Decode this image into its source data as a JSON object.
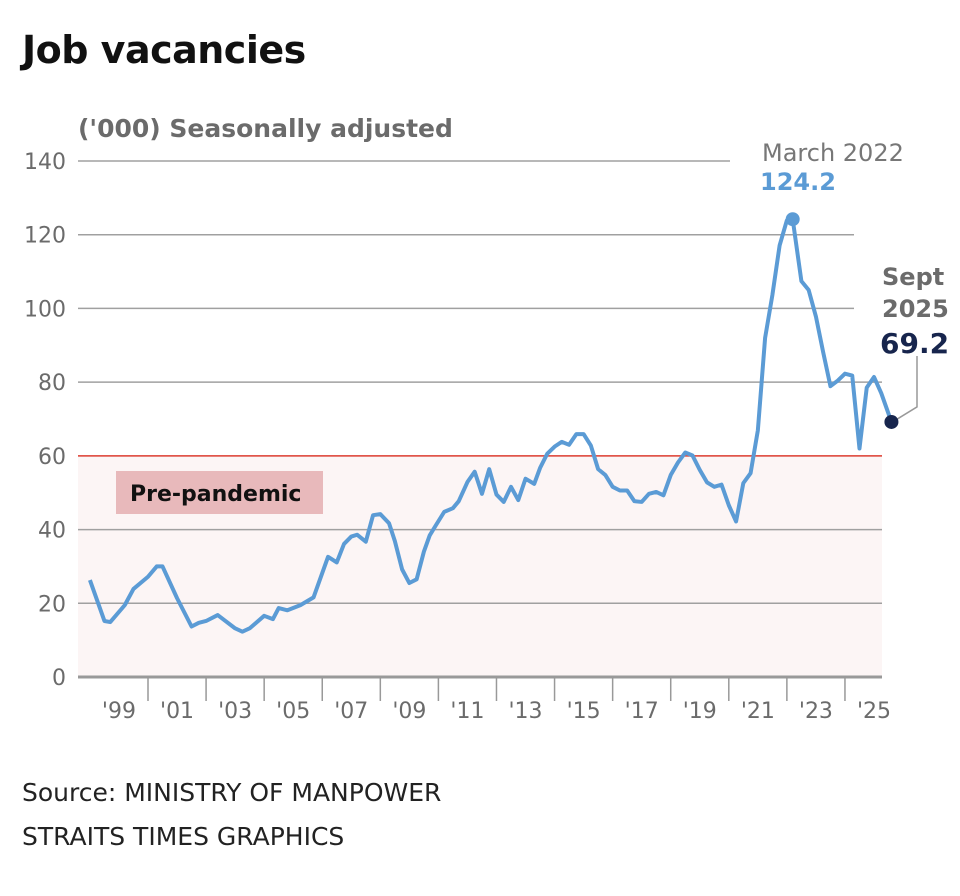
{
  "chart_data": {
    "type": "line",
    "title": "Job vacancies",
    "ylabel": "('000) Seasonally adjusted",
    "ylim": [
      0,
      140
    ],
    "yticks": [
      0,
      20,
      40,
      60,
      80,
      100,
      120,
      140
    ],
    "xlim": [
      1997.6,
      2025.8
    ],
    "xtick_labels": [
      "'99",
      "'01",
      "'03",
      "'05",
      "'07",
      "'09",
      "'11",
      "'13",
      "'15",
      "'17",
      "'19",
      "'21",
      "'23",
      "'25"
    ],
    "xtick_label_years": [
      1999,
      2001,
      2003,
      2005,
      2007,
      2009,
      2011,
      2013,
      2015,
      2017,
      2019,
      2021,
      2023,
      2025
    ],
    "grid": true,
    "line_color": "#5b9bd5",
    "reference": {
      "label": "Pre-pandemic",
      "value": 60,
      "line_color": "#e8473a",
      "band_color": "#fcf5f5",
      "label_bg": "#e8b9bb"
    },
    "series": [
      {
        "x": [
          1998.0,
          1998.5,
          1998.7,
          1999.2,
          1999.5,
          2000.0,
          2000.3,
          2000.5,
          2001.0,
          2001.5,
          2001.75,
          2002.0,
          2002.4,
          2003.0,
          2003.25,
          2003.5,
          2004.0,
          2004.3,
          2004.5,
          2004.8,
          2005.25,
          2005.7,
          2006.2,
          2006.5,
          2006.75,
          2007.0,
          2007.2,
          2007.5,
          2007.75,
          2008.0,
          2008.3,
          2008.5,
          2008.75,
          2009.0,
          2009.25,
          2009.5,
          2009.7,
          2009.9,
          2010.2,
          2010.5,
          2010.7,
          2011.0,
          2011.25,
          2011.5,
          2011.75,
          2012.0,
          2012.25,
          2012.5,
          2012.75,
          2013.0,
          2013.3,
          2013.5,
          2013.75,
          2014.0,
          2014.25,
          2014.5,
          2014.75,
          2015.0,
          2015.25,
          2015.5,
          2015.75,
          2016.0,
          2016.25,
          2016.5,
          2016.75,
          2017.0,
          2017.25,
          2017.5,
          2017.75,
          2018.0,
          2018.25,
          2018.5,
          2018.75,
          2019.0,
          2019.25,
          2019.5,
          2019.75,
          2020.0,
          2020.25,
          2020.5,
          2020.75,
          2021.0,
          2021.25,
          2021.5,
          2021.75,
          2022.0,
          2022.2,
          2022.5,
          2022.75,
          2023.0,
          2023.25,
          2023.5,
          2023.75,
          2024.0,
          2024.25,
          2024.5,
          2024.75,
          2025.0,
          2025.25,
          2025.6
        ],
        "y": [
          26.3,
          15.2,
          14.9,
          19.5,
          23.9,
          27.2,
          30.0,
          30.0,
          21.4,
          13.7,
          14.7,
          15.2,
          16.8,
          13.2,
          12.3,
          13.2,
          16.6,
          15.7,
          18.7,
          18.1,
          19.5,
          21.6,
          32.6,
          31.1,
          36.1,
          38.1,
          38.6,
          36.7,
          43.9,
          44.2,
          41.7,
          36.9,
          29.2,
          25.5,
          26.5,
          34.0,
          38.4,
          41.0,
          44.8,
          45.8,
          47.7,
          52.9,
          55.7,
          49.7,
          56.4,
          49.5,
          47.5,
          51.6,
          48.0,
          53.8,
          52.4,
          56.7,
          60.6,
          62.5,
          63.8,
          63.0,
          65.9,
          65.9,
          62.8,
          56.4,
          54.8,
          51.6,
          50.6,
          50.6,
          47.7,
          47.5,
          49.7,
          50.2,
          49.3,
          54.8,
          58.2,
          60.9,
          60.1,
          56.2,
          52.8,
          51.6,
          52.2,
          46.6,
          42.2,
          52.6,
          55.3,
          66.9,
          92.0,
          103.6,
          117.1,
          123.9,
          124.2,
          107.4,
          105.0,
          97.8,
          88.1,
          78.9,
          80.4,
          82.3,
          81.8,
          62.0,
          78.5,
          81.4,
          77.0,
          69.2
        ]
      }
    ],
    "annotations": [
      {
        "label": "March 2022",
        "value_label": "124.2",
        "x": 2022.2,
        "y": 124.2,
        "color": "#5b9bd5"
      },
      {
        "label_line1": "Sept",
        "label_line2": "2025",
        "value_label": "69.2",
        "x": 2025.6,
        "y": 69.2,
        "color": "#17254d"
      }
    ]
  },
  "footer": {
    "source": "Source: MINISTRY OF MANPOWER",
    "credit": "STRAITS TIMES GRAPHICS"
  }
}
